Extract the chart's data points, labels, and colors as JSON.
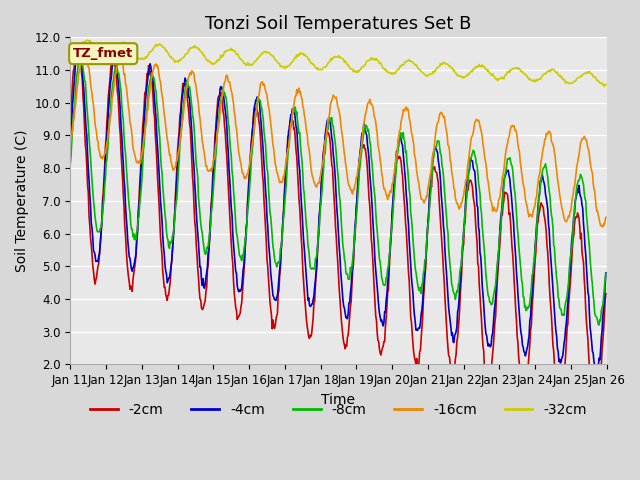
{
  "title": "Tonzi Soil Temperatures Set B",
  "xlabel": "Time",
  "ylabel": "Soil Temperature (C)",
  "ylim": [
    2.0,
    12.0
  ],
  "yticks": [
    2.0,
    3.0,
    4.0,
    5.0,
    6.0,
    7.0,
    8.0,
    9.0,
    10.0,
    11.0,
    12.0
  ],
  "annotation_text": "TZ_fmet",
  "series": {
    "2cm": {
      "color": "#cc0000",
      "linewidth": 1.2,
      "label": "-2cm"
    },
    "4cm": {
      "color": "#0000cc",
      "linewidth": 1.2,
      "label": "-4cm"
    },
    "8cm": {
      "color": "#00bb00",
      "linewidth": 1.2,
      "label": "-8cm"
    },
    "16cm": {
      "color": "#ee8800",
      "linewidth": 1.2,
      "label": "-16cm"
    },
    "32cm": {
      "color": "#cccc00",
      "linewidth": 1.2,
      "label": "-32cm"
    }
  },
  "background_color": "#e8e8e8",
  "plot_bg_color": "#dcdcdc",
  "grid_color": "#ffffff",
  "fig_bg_color": "#d8d8d8",
  "title_fontsize": 13,
  "axis_label_fontsize": 10,
  "tick_fontsize": 8.5,
  "legend_fontsize": 10,
  "n_days": 15,
  "n_per_day": 48
}
